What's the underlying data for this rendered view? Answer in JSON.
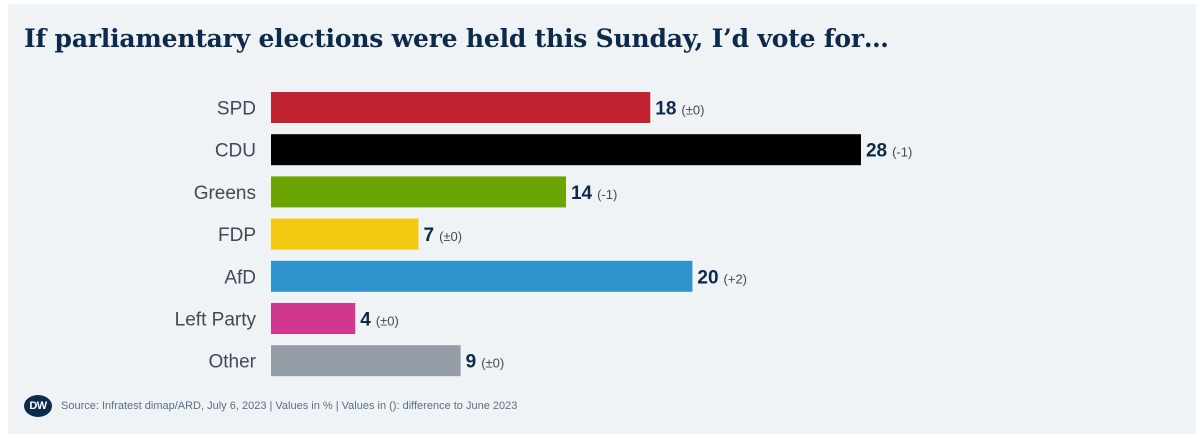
{
  "title": "If parliamentary elections were held this Sunday, I’d vote for…",
  "footer": {
    "logo": "DW",
    "source": "Source: Infratest dimap/ARD, July 6, 2023 | Values in % | Values in (): difference to June 2023"
  },
  "chart_data": {
    "type": "bar",
    "orientation": "horizontal",
    "categories": [
      "SPD",
      "CDU",
      "Greens",
      "FDP",
      "AfD",
      "Left Party",
      "Other"
    ],
    "values": [
      18,
      28,
      14,
      7,
      20,
      4,
      9
    ],
    "changes": [
      "(±0)",
      "(-1)",
      "(-1)",
      "(±0)",
      "(+2)",
      "(±0)",
      "(±0)"
    ],
    "colors": [
      "#c0222f",
      "#000000",
      "#6ba504",
      "#f2c811",
      "#2e93cb",
      "#d0378f",
      "#959da6"
    ],
    "grid": false,
    "legend": "none"
  }
}
